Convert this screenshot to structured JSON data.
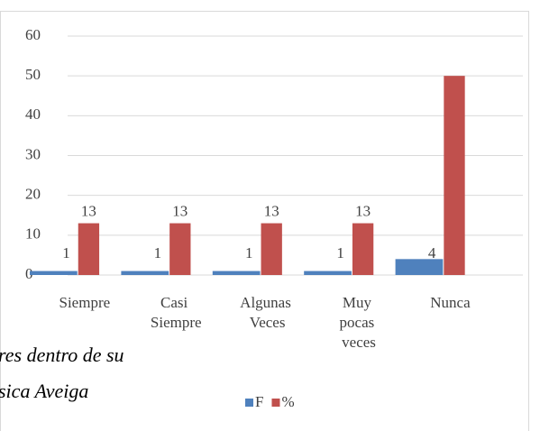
{
  "chart_data": {
    "type": "bar",
    "categories": [
      "Siempre",
      "Casi Siempre",
      "Algunas Veces",
      "Muy pocas veces",
      "Nunca"
    ],
    "series": [
      {
        "name": "F",
        "color": "#4f81bd",
        "values": [
          1,
          1,
          1,
          1,
          4
        ],
        "value_labels": [
          "1",
          "1",
          "1",
          "1",
          "4"
        ]
      },
      {
        "name": "%",
        "color": "#c0504d",
        "values": [
          13,
          13,
          13,
          13,
          50
        ],
        "value_labels": [
          "13",
          "13",
          "13",
          "13",
          null
        ]
      }
    ],
    "ylim": [
      0,
      60
    ],
    "yticks": [
      0,
      10,
      20,
      30,
      40,
      50,
      60
    ],
    "grid": true,
    "legend": "bottom",
    "background_text": [
      "res dentro de su",
      "sica Aveiga"
    ]
  }
}
